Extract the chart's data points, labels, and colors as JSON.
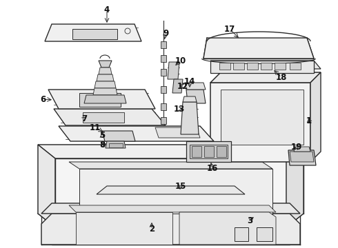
{
  "bg_color": "#ffffff",
  "line_color": "#2a2a2a",
  "figsize": [
    4.9,
    3.6
  ],
  "dpi": 100,
  "label_fontsize": 8.5
}
